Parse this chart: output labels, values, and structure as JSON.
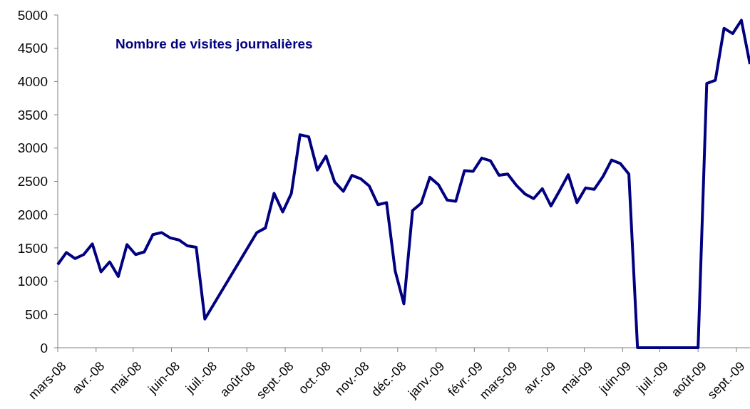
{
  "chart_data": {
    "type": "line",
    "title": "Nombre de visites journalières",
    "grid": false,
    "marker": "none",
    "line_style": "solid",
    "xlim": [
      "2008-03-01",
      "2009-09-12"
    ],
    "xticks": [
      {
        "value": "2008-03-01",
        "label": "mars-08"
      },
      {
        "value": "2008-04-01",
        "label": "avr.-08"
      },
      {
        "value": "2008-05-01",
        "label": "mai-08"
      },
      {
        "value": "2008-06-01",
        "label": "juin-08"
      },
      {
        "value": "2008-07-01",
        "label": "juil.-08"
      },
      {
        "value": "2008-08-01",
        "label": "août-08"
      },
      {
        "value": "2008-09-01",
        "label": "sept.-08"
      },
      {
        "value": "2008-10-01",
        "label": "oct.-08"
      },
      {
        "value": "2008-11-01",
        "label": "nov.-08"
      },
      {
        "value": "2008-12-01",
        "label": "déc.-08"
      },
      {
        "value": "2009-01-01",
        "label": "janv.-09"
      },
      {
        "value": "2009-02-01",
        "label": "févr.-09"
      },
      {
        "value": "2009-03-01",
        "label": "mars-09"
      },
      {
        "value": "2009-04-01",
        "label": "avr.-09"
      },
      {
        "value": "2009-05-01",
        "label": "mai-09"
      },
      {
        "value": "2009-06-01",
        "label": "juin-09"
      },
      {
        "value": "2009-07-01",
        "label": "juil.-09"
      },
      {
        "value": "2009-08-01",
        "label": "août-09"
      },
      {
        "value": "2009-09-01",
        "label": "sept.-09"
      }
    ],
    "ylim": [
      0,
      5000
    ],
    "yticks": [
      0,
      500,
      1000,
      1500,
      2000,
      2500,
      3000,
      3500,
      4000,
      4500,
      5000
    ],
    "x": [
      "2008-03-01",
      "2008-03-08",
      "2008-03-15",
      "2008-03-22",
      "2008-03-29",
      "2008-04-05",
      "2008-04-12",
      "2008-04-19",
      "2008-04-26",
      "2008-05-03",
      "2008-05-10",
      "2008-05-17",
      "2008-05-24",
      "2008-05-31",
      "2008-06-07",
      "2008-06-14",
      "2008-06-21",
      "2008-06-28",
      "2008-08-09",
      "2008-08-16",
      "2008-08-23",
      "2008-08-30",
      "2008-09-06",
      "2008-09-13",
      "2008-09-20",
      "2008-09-27",
      "2008-10-04",
      "2008-10-11",
      "2008-10-18",
      "2008-10-25",
      "2008-11-01",
      "2008-11-08",
      "2008-11-15",
      "2008-11-22",
      "2008-11-29",
      "2008-12-06",
      "2008-12-13",
      "2008-12-20",
      "2008-12-27",
      "2009-01-03",
      "2009-01-10",
      "2009-01-17",
      "2009-01-24",
      "2009-01-31",
      "2009-02-07",
      "2009-02-14",
      "2009-02-21",
      "2009-02-28",
      "2009-03-07",
      "2009-03-14",
      "2009-03-21",
      "2009-03-28",
      "2009-04-04",
      "2009-04-11",
      "2009-04-18",
      "2009-04-25",
      "2009-05-02",
      "2009-05-09",
      "2009-05-16",
      "2009-05-23",
      "2009-05-30",
      "2009-06-06",
      "2009-06-13",
      "2009-08-01",
      "2009-08-08",
      "2009-08-15",
      "2009-08-22",
      "2009-08-29",
      "2009-09-05",
      "2009-09-12"
    ],
    "series": [
      {
        "color": "#000080",
        "values": [
          1250,
          1430,
          1340,
          1400,
          1560,
          1140,
          1290,
          1070,
          1550,
          1400,
          1440,
          1700,
          1730,
          1650,
          1620,
          1530,
          1510,
          430,
          1730,
          1800,
          2320,
          2040,
          2320,
          3200,
          3170,
          2670,
          2880,
          2490,
          2350,
          2590,
          2540,
          2430,
          2150,
          2180,
          1150,
          660,
          2060,
          2170,
          2560,
          2450,
          2220,
          2200,
          2660,
          2650,
          2850,
          2810,
          2590,
          2610,
          2440,
          2310,
          2240,
          2390,
          2130,
          2360,
          2600,
          2180,
          2400,
          2380,
          2570,
          2820,
          2770,
          2610,
          0,
          0,
          3970,
          4020,
          4800,
          4720,
          4920,
          4260
        ]
      }
    ]
  }
}
